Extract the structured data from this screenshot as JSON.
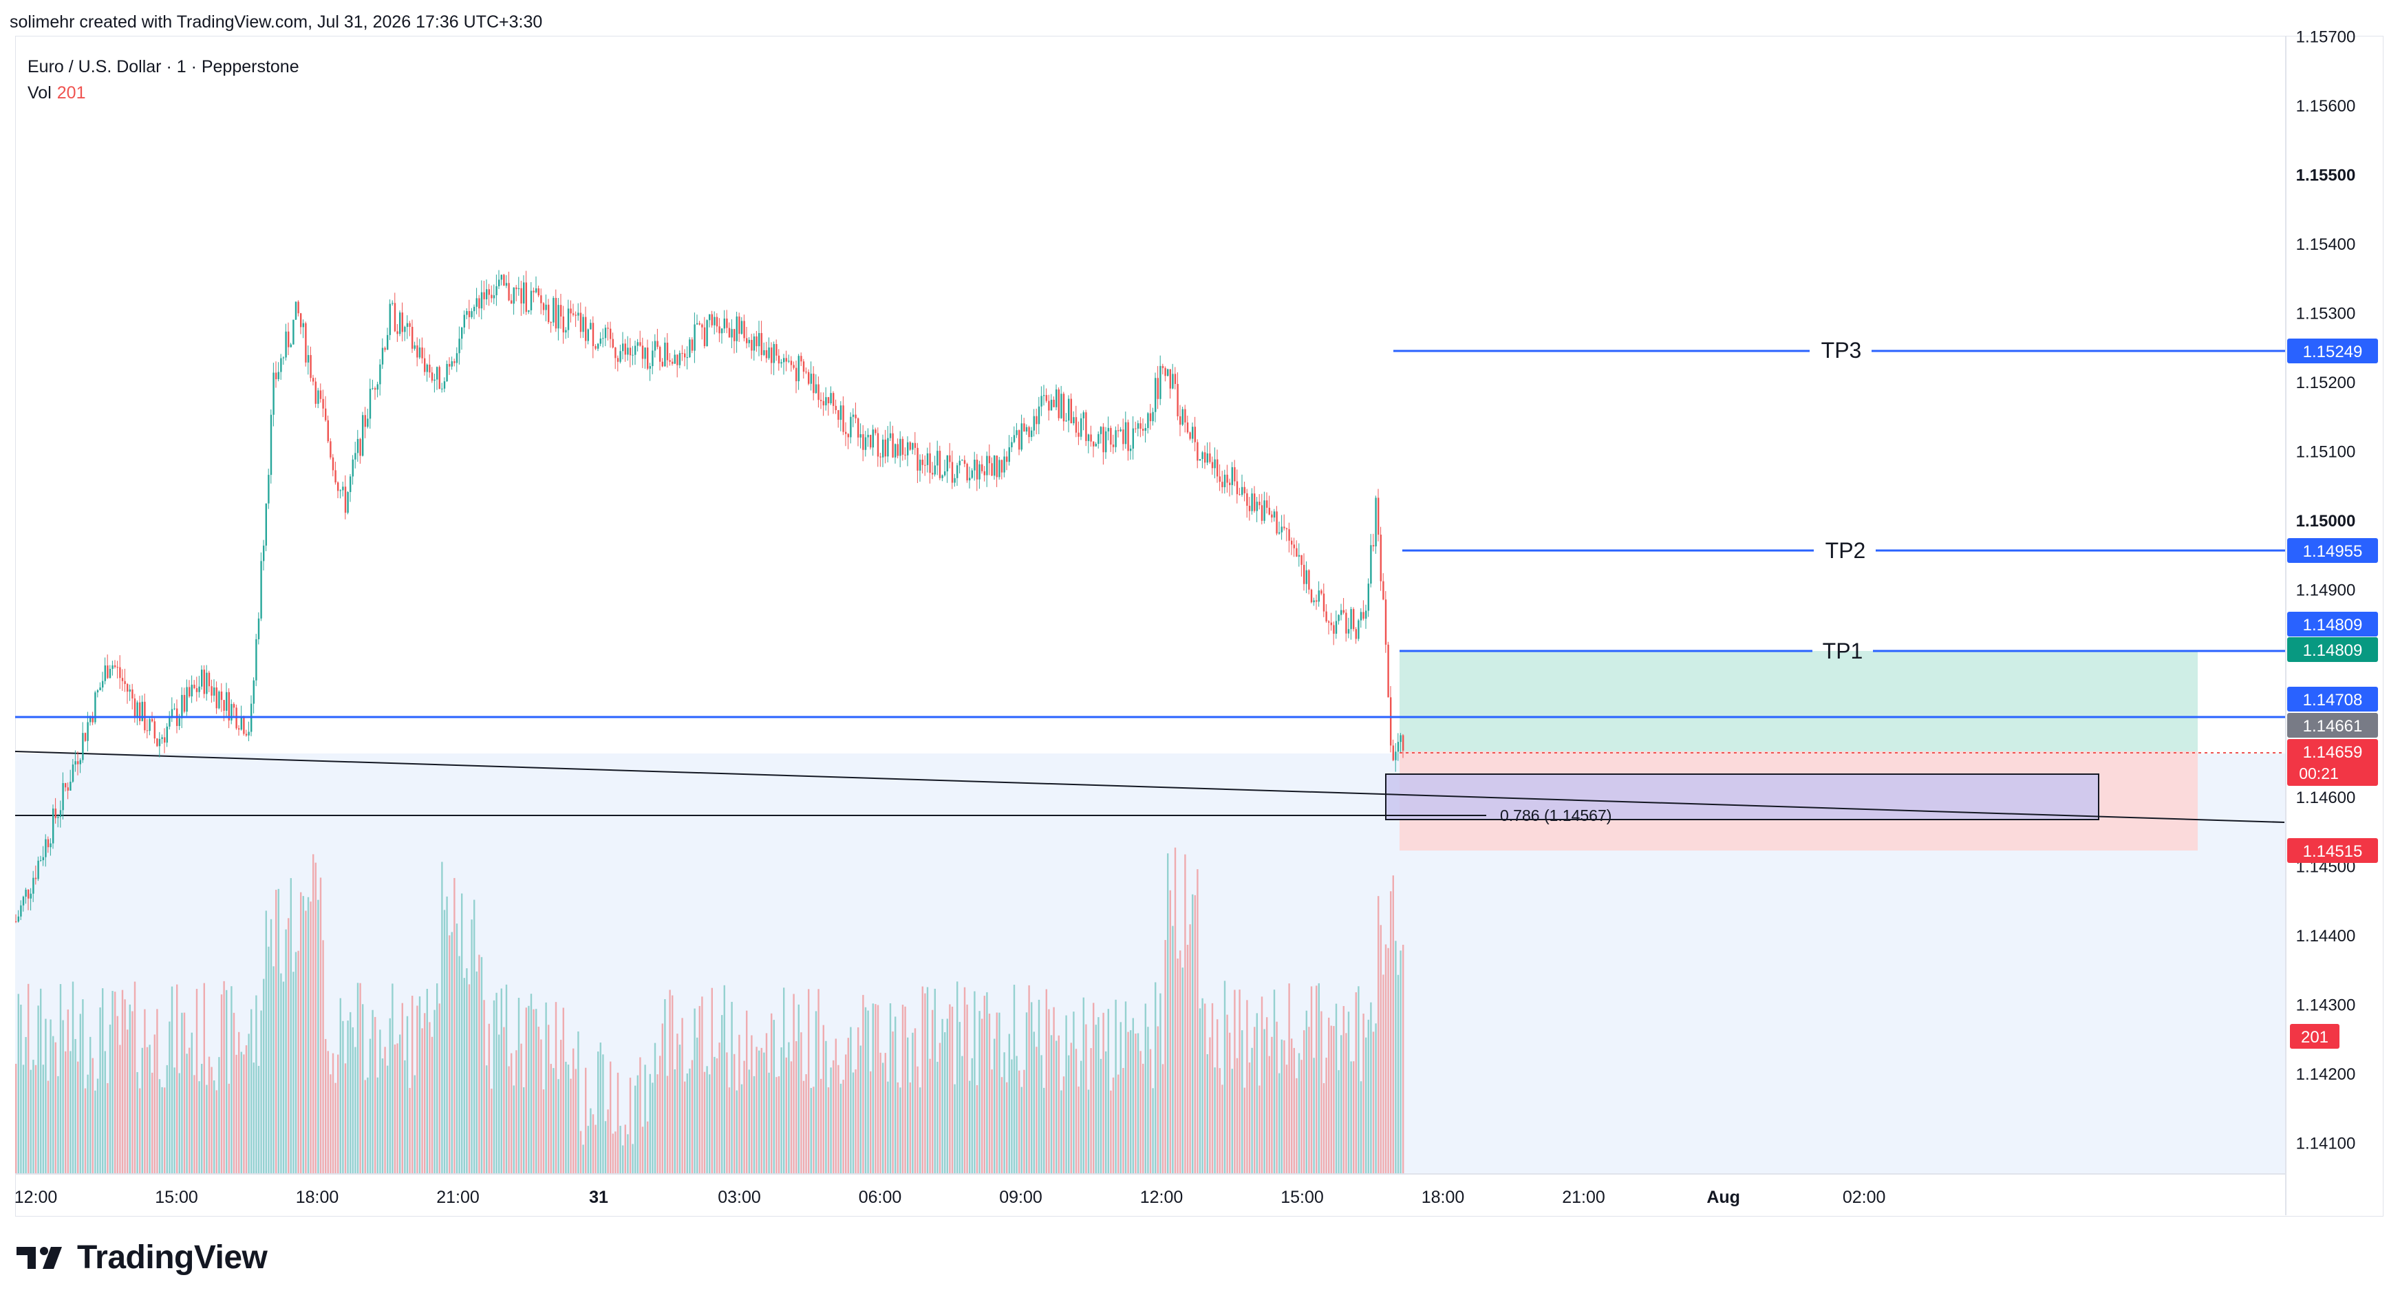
{
  "attribution": {
    "text": "solimehr created with TradingView.com, Jul 31, 2026 17:36 UTC+3:30"
  },
  "legend": {
    "symbol": "Euro / U.S. Dollar · 1 · Pepperstone",
    "volume_label": "Vol",
    "volume_value": "201"
  },
  "price_scale": {
    "ticks": [
      "1.15700",
      "1.15600",
      "1.15500",
      "1.15400",
      "1.15300",
      "1.15200",
      "1.15100",
      "1.15000",
      "1.14900",
      "1.14600",
      "1.14500",
      "1.14400",
      "1.14300",
      "1.14200",
      "1.14100"
    ],
    "bold_ticks": [
      "1.15500",
      "1.15000"
    ]
  },
  "time_scale": {
    "ticks": [
      "12:00",
      "15:00",
      "18:00",
      "21:00",
      "31",
      "03:00",
      "06:00",
      "09:00",
      "12:00",
      "15:00",
      "18:00",
      "21:00",
      "Aug",
      "02:00"
    ]
  },
  "drawings": {
    "tp3": {
      "label": "TP3",
      "price_label": "1.15249",
      "price": 1.15249
    },
    "tp2": {
      "label": "TP2",
      "price_label": "1.14955",
      "price": 1.14955
    },
    "tp1": {
      "label": "TP1",
      "price_label": "1.14809",
      "price": 1.14809
    },
    "tp1_target_label": "1.14809",
    "level_line": {
      "price_label": "1.14708",
      "price": 1.14708
    },
    "fib_label": "0.786 (1.14567)",
    "entry_price_label": "1.14661",
    "current_price_label": "1.14659",
    "countdown": "00:21",
    "stop_price_label": "1.14515",
    "volume_badge": "201"
  },
  "colors": {
    "blue_line": "#2962ff",
    "up": "#26a69a",
    "down": "#ef5350",
    "profit_zone": "#cfeee6",
    "loss_zone": "#fbdadb",
    "box_fill": "#c9c5f0",
    "blue_zone": "#eef4fd"
  },
  "chart_data": {
    "type": "candlestick",
    "symbol": "Euro / U.S. Dollar",
    "interval": "1",
    "broker": "Pepperstone",
    "ylim": [
      1.1405,
      1.1572
    ],
    "close_path": [
      {
        "t": "Jul 30 12:00",
        "price": 1.1442
      },
      {
        "t": "Jul 30 13:00",
        "price": 1.146
      },
      {
        "t": "Jul 30 14:00",
        "price": 1.148
      },
      {
        "t": "Jul 30 15:00",
        "price": 1.1468
      },
      {
        "t": "Jul 30 16:00",
        "price": 1.1477
      },
      {
        "t": "Jul 30 17:00",
        "price": 1.147
      },
      {
        "t": "Jul 30 17:30",
        "price": 1.152
      },
      {
        "t": "Jul 30 18:00",
        "price": 1.153
      },
      {
        "t": "Jul 30 19:00",
        "price": 1.1502
      },
      {
        "t": "Jul 30 20:00",
        "price": 1.153
      },
      {
        "t": "Jul 30 21:00",
        "price": 1.152
      },
      {
        "t": "Jul 30 22:00",
        "price": 1.1534
      },
      {
        "t": "Jul 30 23:00",
        "price": 1.1532
      },
      {
        "t": "Jul 31 00:00",
        "price": 1.1528
      },
      {
        "t": "Jul 31 01:00",
        "price": 1.1524
      },
      {
        "t": "Jul 31 02:00",
        "price": 1.1524
      },
      {
        "t": "Jul 31 03:00",
        "price": 1.1529
      },
      {
        "t": "Jul 31 04:00",
        "price": 1.1525
      },
      {
        "t": "Jul 31 05:00",
        "price": 1.152
      },
      {
        "t": "Jul 31 06:00",
        "price": 1.1512
      },
      {
        "t": "Jul 31 07:00",
        "price": 1.151
      },
      {
        "t": "Jul 31 08:00",
        "price": 1.1507
      },
      {
        "t": "Jul 31 09:00",
        "price": 1.1508
      },
      {
        "t": "Jul 31 10:00",
        "price": 1.1518
      },
      {
        "t": "Jul 31 11:00",
        "price": 1.1512
      },
      {
        "t": "Jul 31 12:00",
        "price": 1.1512
      },
      {
        "t": "Jul 31 12:30",
        "price": 1.1523
      },
      {
        "t": "Jul 31 13:00",
        "price": 1.1512
      },
      {
        "t": "Jul 31 14:00",
        "price": 1.1505
      },
      {
        "t": "Jul 31 15:00",
        "price": 1.1499
      },
      {
        "t": "Jul 31 16:00",
        "price": 1.1485
      },
      {
        "t": "Jul 31 16:45",
        "price": 1.1485
      },
      {
        "t": "Jul 31 17:00",
        "price": 1.1502
      },
      {
        "t": "Jul 31 17:10",
        "price": 1.1487
      },
      {
        "t": "Jul 31 17:20",
        "price": 1.1464
      },
      {
        "t": "Jul 31 17:30",
        "price": 1.1468
      },
      {
        "t": "Jul 31 17:36",
        "price": 1.14659
      }
    ],
    "volume_last": 201,
    "last_price": 1.14659
  }
}
